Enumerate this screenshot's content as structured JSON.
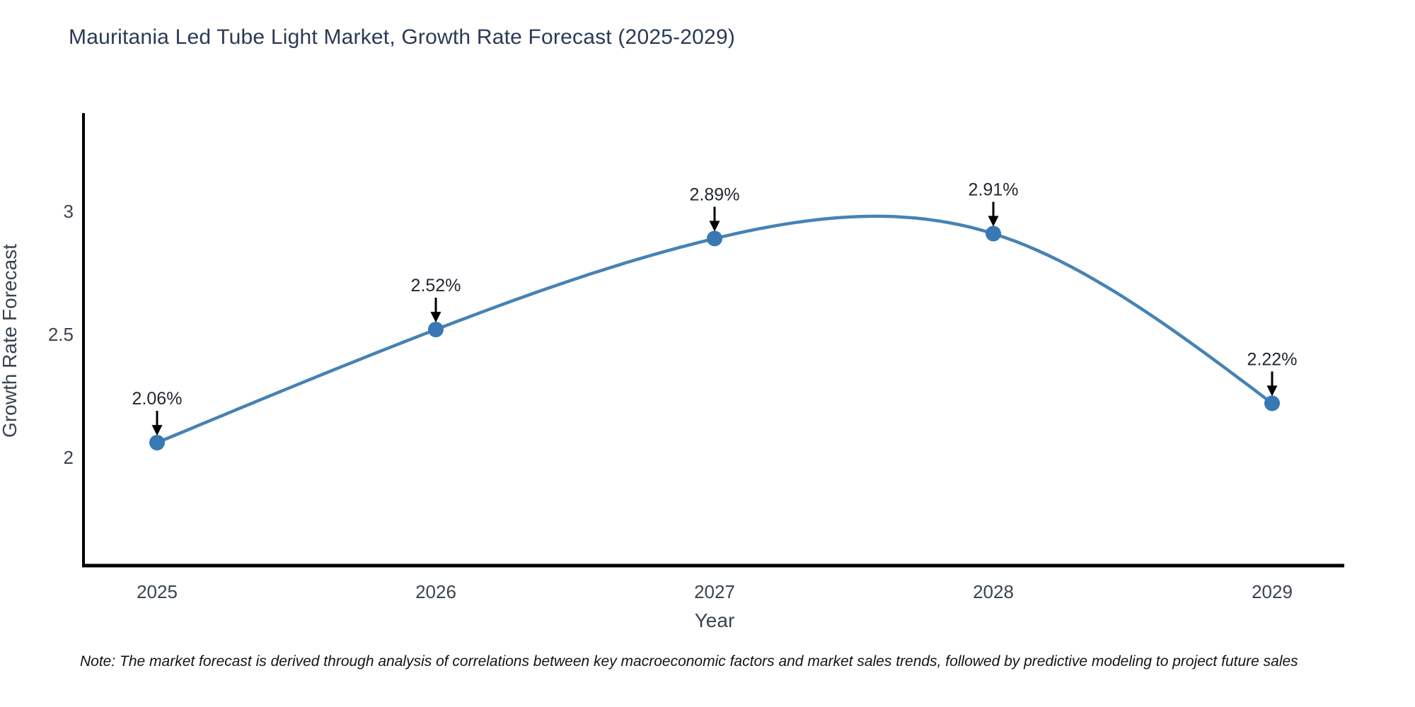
{
  "chart_data": {
    "type": "line",
    "title": "Mauritania Led Tube Light Market, Growth Rate Forecast (2025-2029)",
    "xlabel": "Year",
    "ylabel": "Growth Rate Forecast",
    "categories": [
      "2025",
      "2026",
      "2027",
      "2028",
      "2029"
    ],
    "x": [
      2025,
      2026,
      2027,
      2028,
      2029
    ],
    "values": [
      2.06,
      2.52,
      2.89,
      2.91,
      2.22
    ],
    "point_labels": [
      "2.06%",
      "2.52%",
      "2.89%",
      "2.91%",
      "2.22%"
    ],
    "y_ticks": [
      2,
      2.5,
      3
    ],
    "y_tick_labels": [
      "2",
      "2.5",
      "3"
    ],
    "ylim": [
      1.56,
      3.4
    ],
    "curve": "spline",
    "grid": false,
    "legend": "none",
    "line_color": "#4682b4",
    "marker_color": "#3878b4",
    "axis_color": "#000000",
    "annotation_arrow_color": "#000000",
    "title_color": "#2b3a55",
    "tick_color": "#3a4450"
  },
  "note": "Note: The market forecast is derived through analysis of correlations between key macroeconomic factors and market sales trends, followed by predictive modeling to project future sales"
}
